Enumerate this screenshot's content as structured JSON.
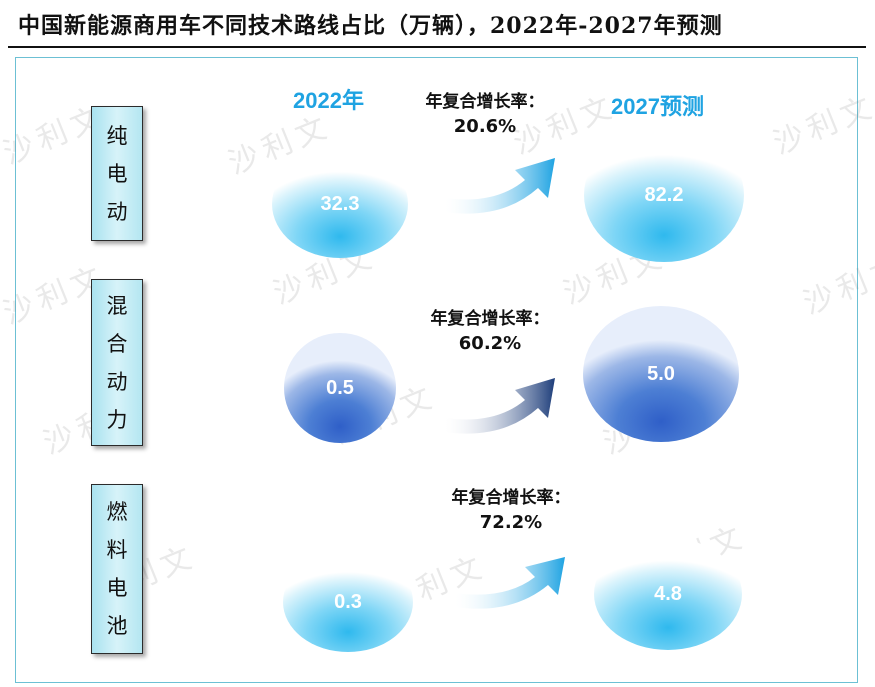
{
  "title": "中国新能源商用车不同技术路线占比（万辆），2022年-2027年预测",
  "headers": {
    "year_2022": "2022年",
    "year_2027": "2027预测"
  },
  "rows": [
    {
      "label_chars": [
        "纯",
        "电",
        "动"
      ],
      "v2022": "32.3",
      "v2027": "82.2",
      "cagr_label": "年复合增长率：",
      "cagr_value": "20.6%"
    },
    {
      "label_chars": [
        "混",
        "合",
        "动",
        "力"
      ],
      "v2022": "0.5",
      "v2027": "5.0",
      "cagr_label": "年复合增长率：",
      "cagr_value": "60.2%"
    },
    {
      "label_chars": [
        "燃",
        "料",
        "电",
        "池"
      ],
      "v2022": "0.3",
      "v2027": "4.8",
      "cagr_label": "年复合增长率：",
      "cagr_value": "72.2%"
    }
  ],
  "watermark": "沙利文",
  "colors": {
    "title_text": "#111111",
    "header_blue": "#1fa3e2",
    "light_bubble": "#2fb9ee",
    "dark_bubble": "#2f5fc8",
    "panel_border": "#6cc0d4"
  }
}
